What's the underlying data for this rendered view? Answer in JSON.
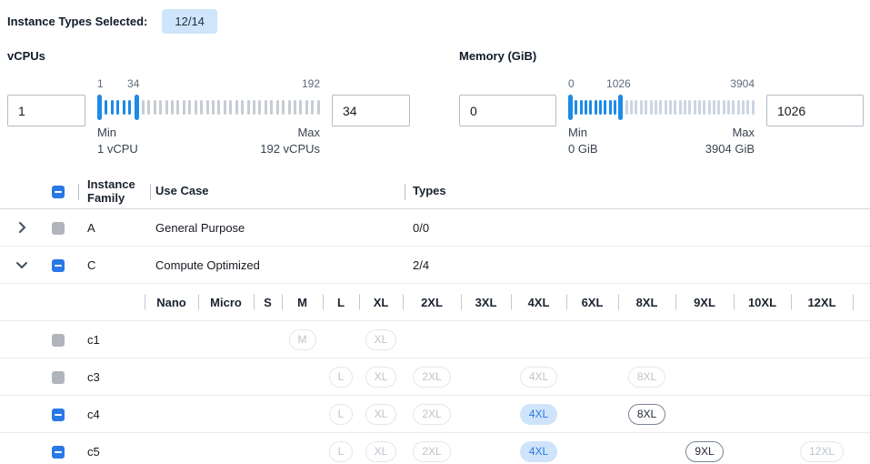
{
  "header": {
    "label": "Instance Types Selected:",
    "badge": "12/14"
  },
  "filters": [
    {
      "title": "vCPUs",
      "low": 1,
      "high": 34,
      "range": [
        1,
        192
      ],
      "scale": {
        "min": "1",
        "high": "34",
        "max": "192"
      },
      "min_title": "Min",
      "min_sub": "1 vCPU",
      "max_title": "Max",
      "max_sub": "192 vCPUs",
      "tick_off": "#c6ccd3"
    },
    {
      "title": "Memory (GiB)",
      "low": 0,
      "high": 1026,
      "range": [
        0,
        3904
      ],
      "scale": {
        "min": "0",
        "high": "1026",
        "max": "3904"
      },
      "min_title": "Min",
      "min_sub": "0 GiB",
      "max_title": "Max",
      "max_sub": "3904 GiB",
      "tick_off": "#ccd5e4"
    }
  ],
  "table": {
    "header": {
      "family": "Instance Family",
      "use_case": "Use Case",
      "types": "Types",
      "select_all_state": "indeterminate"
    },
    "families": [
      {
        "name": "A",
        "use_case": "General Purpose",
        "types": "0/0",
        "expanded": false,
        "checkbox": "disabled"
      },
      {
        "name": "C",
        "use_case": "Compute Optimized",
        "types": "2/4",
        "expanded": true,
        "checkbox": "indeterminate"
      }
    ],
    "sizes": [
      "Nano",
      "Micro",
      "S",
      "M",
      "L",
      "XL",
      "2XL",
      "3XL",
      "4XL",
      "6XL",
      "8XL",
      "9XL",
      "10XL",
      "12XL"
    ],
    "instances": [
      {
        "name": "c1",
        "checkbox": "disabled",
        "chips": [
          {
            "size": "M",
            "state": "disabled"
          },
          {
            "size": "XL",
            "state": "disabled"
          }
        ]
      },
      {
        "name": "c3",
        "checkbox": "disabled",
        "chips": [
          {
            "size": "L",
            "state": "disabled"
          },
          {
            "size": "XL",
            "state": "disabled"
          },
          {
            "size": "2XL",
            "state": "disabled"
          },
          {
            "size": "4XL",
            "state": "disabled"
          },
          {
            "size": "8XL",
            "state": "disabled"
          }
        ]
      },
      {
        "name": "c4",
        "checkbox": "indeterminate",
        "chips": [
          {
            "size": "L",
            "state": "disabled"
          },
          {
            "size": "XL",
            "state": "disabled"
          },
          {
            "size": "2XL",
            "state": "disabled"
          },
          {
            "size": "4XL",
            "state": "selected"
          },
          {
            "size": "8XL",
            "state": "enabled"
          }
        ]
      },
      {
        "name": "c5",
        "checkbox": "indeterminate",
        "chips": [
          {
            "size": "L",
            "state": "disabled"
          },
          {
            "size": "XL",
            "state": "disabled"
          },
          {
            "size": "2XL",
            "state": "disabled"
          },
          {
            "size": "4XL",
            "state": "selected"
          },
          {
            "size": "9XL",
            "state": "enabled"
          },
          {
            "size": "12XL",
            "state": "disabled"
          }
        ]
      }
    ]
  },
  "icons": {
    "expand_collapsed": "chevron-right",
    "expand_expanded": "chevron-down",
    "checkbox_indeterminate": "minus"
  },
  "colors": {
    "accent_checkbox": "#2878e6",
    "accent_slider": "#1d8be8",
    "badge_bg": "#cfe5fb",
    "chip_selected_bg": "#cfe4fb",
    "chip_selected_text": "#2979e0",
    "chip_enabled_border": "#7b8795",
    "chip_disabled_border": "#e4e7ea",
    "checkbox_disabled": "#b0b5bc",
    "row_border": "#e9ebed",
    "column_separator": "#b9c0c8"
  }
}
